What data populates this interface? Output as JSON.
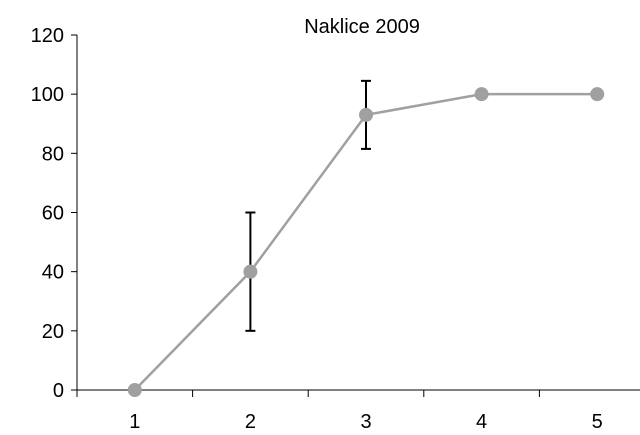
{
  "chart_data": {
    "type": "line",
    "title": "Naklice 2009",
    "xlabel": "",
    "ylabel": "",
    "categories": [
      "1",
      "2",
      "3",
      "4",
      "5"
    ],
    "series": [
      {
        "values": [
          0,
          40,
          93,
          100,
          100
        ],
        "error": [
          null,
          20,
          11.5,
          null,
          null
        ],
        "color": "#a0a0a0"
      }
    ],
    "ylim": [
      0,
      120
    ],
    "yticks": [
      0,
      20,
      40,
      60,
      80,
      100,
      120
    ],
    "grid": false,
    "legend": "none",
    "error_bar_color": "#000000",
    "axis_color": "#000000"
  }
}
